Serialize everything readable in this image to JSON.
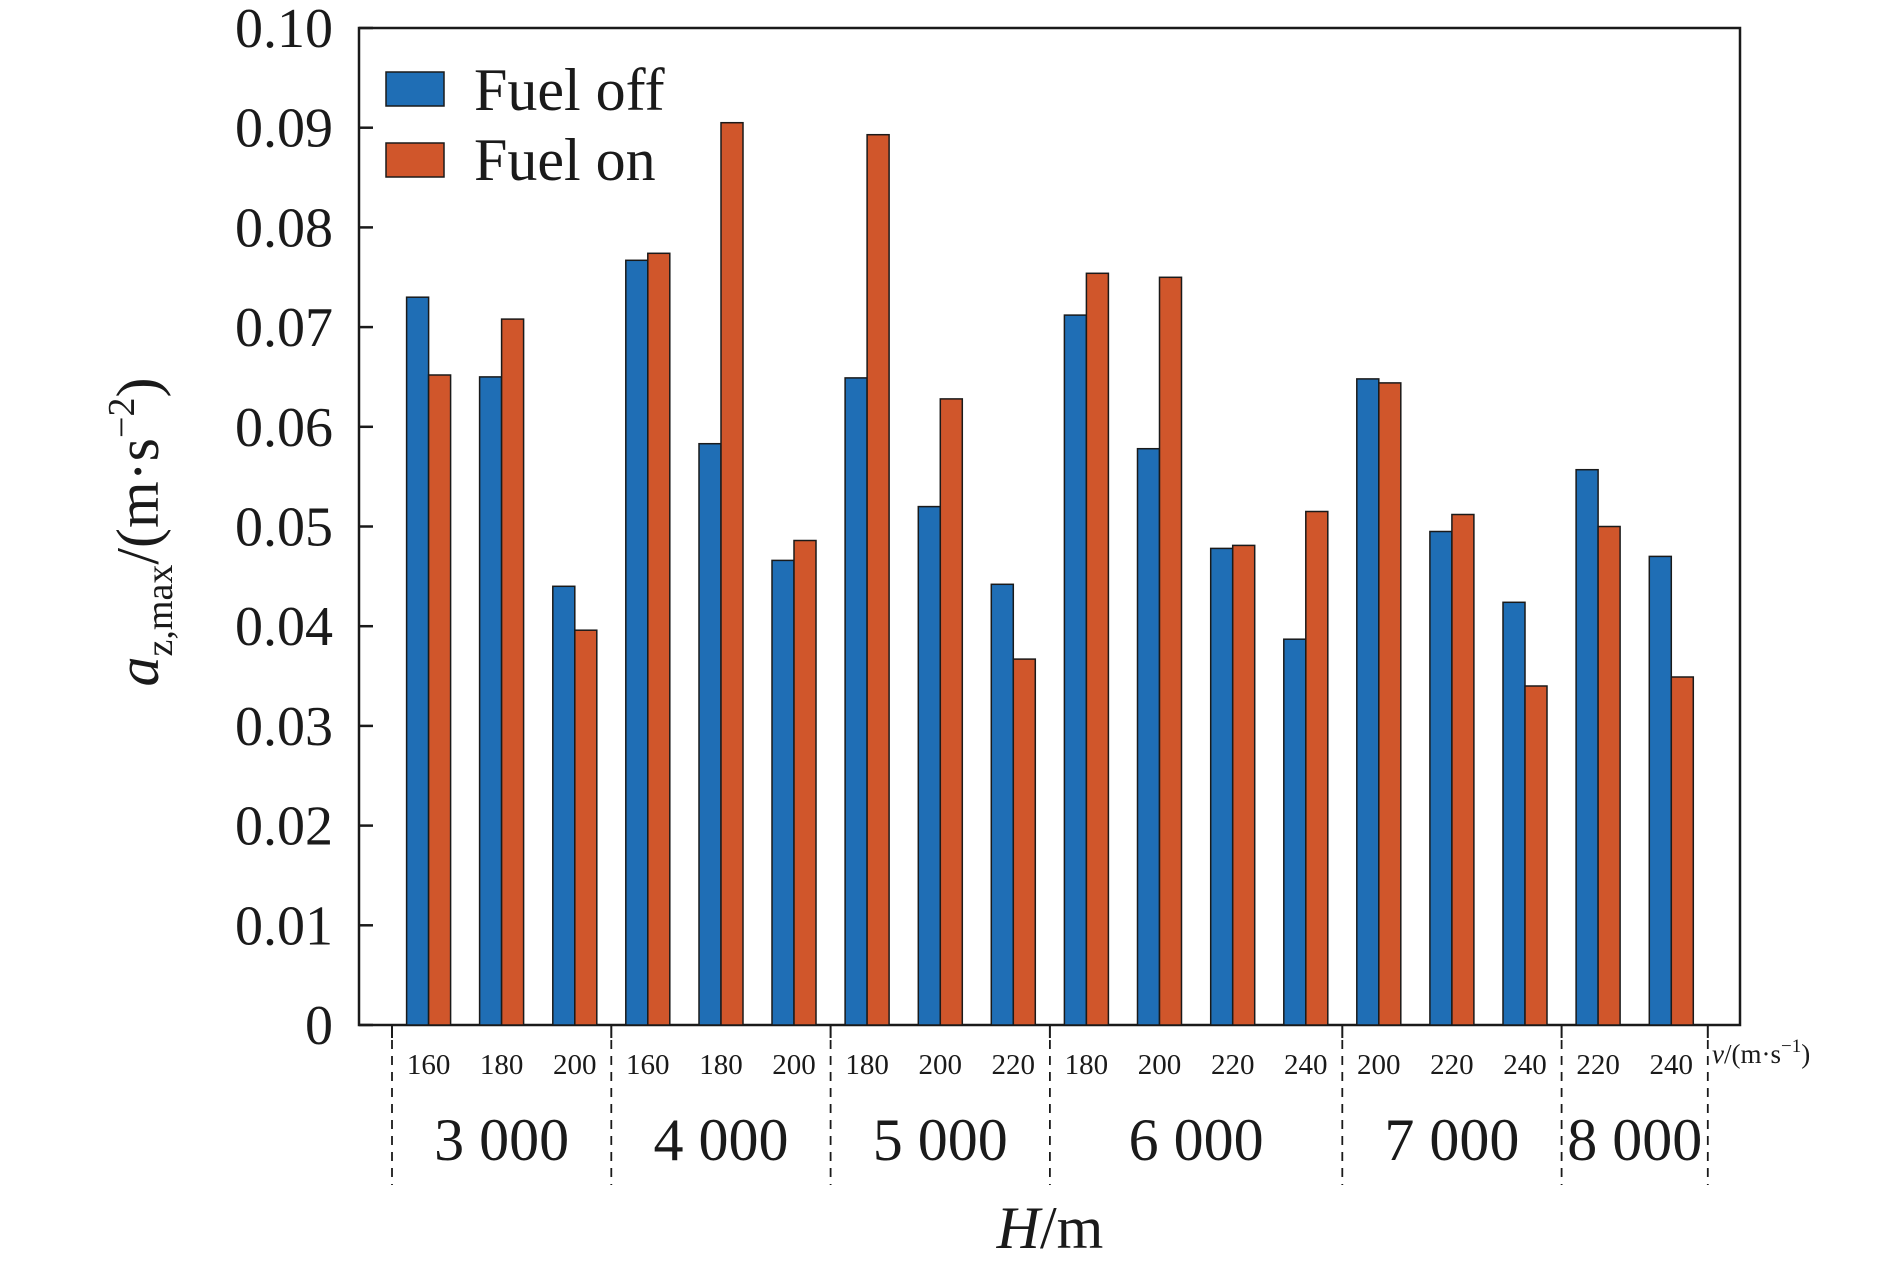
{
  "chart_data": {
    "type": "bar",
    "ylabel": {
      "main": "a",
      "sub": "z,max",
      "unit_prefix": "/(m·s",
      "unit_exp": "−2",
      "unit_suffix": ")"
    },
    "xlabel": {
      "main": "H",
      "unit": "/m"
    },
    "x_unit_label": {
      "main": "v",
      "prefix": "/(m·s",
      "exp": "−1",
      "suffix": ")"
    },
    "ylim": [
      0,
      0.1
    ],
    "y_ticks": [
      "0",
      "0.01",
      "0.02",
      "0.03",
      "0.04",
      "0.05",
      "0.06",
      "0.07",
      "0.08",
      "0.09",
      "0.10"
    ],
    "legend_position": "top-left",
    "grid": false,
    "groups": [
      {
        "label": "3 000",
        "categories": [
          "160",
          "180",
          "200"
        ]
      },
      {
        "label": "4 000",
        "categories": [
          "160",
          "180",
          "200"
        ]
      },
      {
        "label": "5 000",
        "categories": [
          "180",
          "200",
          "220"
        ]
      },
      {
        "label": "6 000",
        "categories": [
          "180",
          "200",
          "220",
          "240"
        ]
      },
      {
        "label": "7 000",
        "categories": [
          "200",
          "220",
          "240"
        ]
      },
      {
        "label": "8 000",
        "categories": [
          "220",
          "240"
        ]
      }
    ],
    "series": [
      {
        "name": "Fuel off",
        "color": "#1f6eb5",
        "values": [
          0.073,
          0.065,
          0.044,
          0.0767,
          0.0583,
          0.0466,
          0.0649,
          0.052,
          0.0442,
          0.0712,
          0.0578,
          0.0478,
          0.0387,
          0.0648,
          0.0495,
          0.0424,
          0.0557,
          0.047
        ]
      },
      {
        "name": "Fuel on",
        "color": "#d0562b",
        "values": [
          0.0652,
          0.0708,
          0.0396,
          0.0774,
          0.0905,
          0.0486,
          0.0893,
          0.0628,
          0.0367,
          0.0754,
          0.075,
          0.0481,
          0.0515,
          0.0644,
          0.0512,
          0.034,
          0.05,
          0.0349
        ]
      }
    ]
  }
}
